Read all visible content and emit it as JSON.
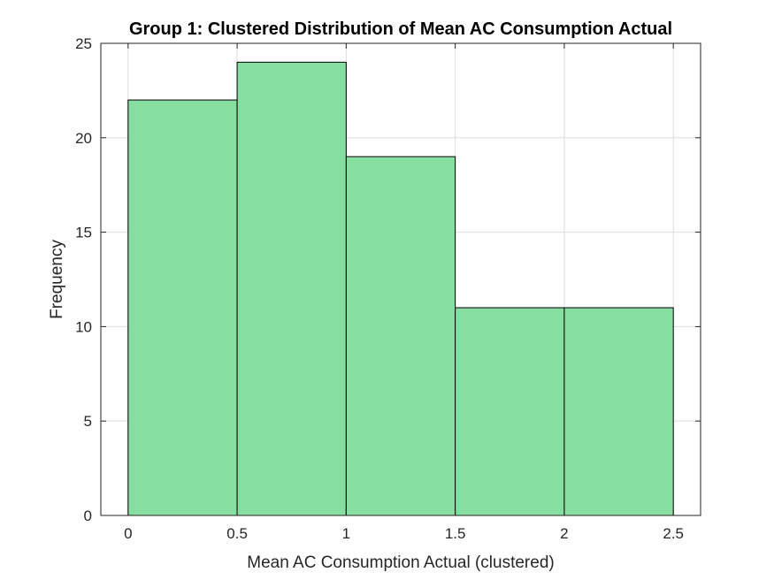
{
  "chart_data": {
    "type": "bar",
    "title": "Group 1: Clustered Distribution of Mean AC Consumption Actual",
    "xlabel": "Mean AC Consumption Actual (clustered)",
    "ylabel": "Frequency",
    "bin_edges": [
      0,
      0.5,
      1,
      1.5,
      2,
      2.5
    ],
    "values": [
      22,
      24,
      19,
      11,
      11
    ],
    "xlim": [
      -0.125,
      2.625
    ],
    "ylim": [
      0,
      25
    ],
    "xticks": [
      0,
      0.5,
      1,
      1.5,
      2,
      2.5
    ],
    "xtick_labels": [
      "0",
      "0.5",
      "1",
      "1.5",
      "2",
      "2.5"
    ],
    "yticks": [
      0,
      5,
      10,
      15,
      20,
      25
    ],
    "ytick_labels": [
      "0",
      "5",
      "10",
      "15",
      "20",
      "25"
    ],
    "grid": true,
    "bar_color": "#86DFA0",
    "edge_color": "#000000"
  }
}
